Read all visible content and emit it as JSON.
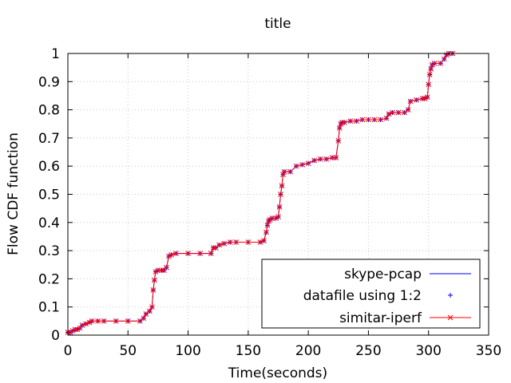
{
  "chart_data": {
    "type": "line",
    "title": "title",
    "xlabel": "Time(seconds)",
    "ylabel": "Flow CDF function",
    "xlim": [
      0,
      350
    ],
    "ylim": [
      0,
      1
    ],
    "xticks": [
      "0",
      "50",
      "100",
      "150",
      "200",
      "250",
      "300",
      "350"
    ],
    "yticks": [
      "0",
      "0.1",
      "0.2",
      "0.3",
      "0.4",
      "0.5",
      "0.6",
      "0.7",
      "0.8",
      "0.9",
      "1"
    ],
    "grid": true,
    "legend_position": "bottom-right",
    "series": [
      {
        "name": "skype-pcap",
        "color": "#0000ff",
        "style": "line",
        "x": [
          0,
          2,
          4,
          6,
          8,
          10,
          12,
          15,
          18,
          20,
          25,
          30,
          40,
          50,
          60,
          63,
          65,
          68,
          70,
          71,
          72,
          73,
          75,
          78,
          80,
          82,
          84,
          86,
          90,
          100,
          110,
          119,
          121,
          123,
          126,
          130,
          135,
          140,
          150,
          160,
          163,
          165,
          166,
          167,
          168,
          170,
          173,
          175,
          176,
          177,
          178,
          179,
          180,
          185,
          190,
          195,
          200,
          205,
          210,
          215,
          220,
          223,
          225,
          226,
          227,
          228,
          230,
          235,
          240,
          245,
          250,
          255,
          260,
          265,
          267,
          270,
          275,
          280,
          283,
          285,
          290,
          295,
          297,
          299,
          300,
          301,
          302,
          303,
          305,
          310,
          313,
          315,
          317,
          320
        ],
        "y": [
          0.01,
          0.01,
          0.015,
          0.02,
          0.02,
          0.025,
          0.035,
          0.04,
          0.045,
          0.05,
          0.05,
          0.05,
          0.05,
          0.05,
          0.05,
          0.06,
          0.075,
          0.085,
          0.1,
          0.16,
          0.195,
          0.225,
          0.23,
          0.23,
          0.23,
          0.24,
          0.28,
          0.285,
          0.29,
          0.29,
          0.29,
          0.29,
          0.31,
          0.31,
          0.32,
          0.325,
          0.33,
          0.33,
          0.33,
          0.33,
          0.335,
          0.365,
          0.39,
          0.405,
          0.41,
          0.415,
          0.415,
          0.42,
          0.455,
          0.5,
          0.53,
          0.57,
          0.58,
          0.58,
          0.6,
          0.605,
          0.61,
          0.62,
          0.625,
          0.625,
          0.63,
          0.63,
          0.69,
          0.735,
          0.75,
          0.755,
          0.755,
          0.76,
          0.76,
          0.765,
          0.765,
          0.765,
          0.765,
          0.77,
          0.785,
          0.79,
          0.79,
          0.79,
          0.8,
          0.83,
          0.835,
          0.84,
          0.84,
          0.845,
          0.89,
          0.925,
          0.945,
          0.96,
          0.965,
          0.965,
          0.98,
          0.995,
          1.0,
          1.0
        ]
      },
      {
        "name": "datafile using 1:2",
        "color": "#0000ff",
        "style": "plus"
      },
      {
        "name": "simitar-iperf",
        "color": "#ff0000",
        "style": "line-x"
      }
    ]
  }
}
